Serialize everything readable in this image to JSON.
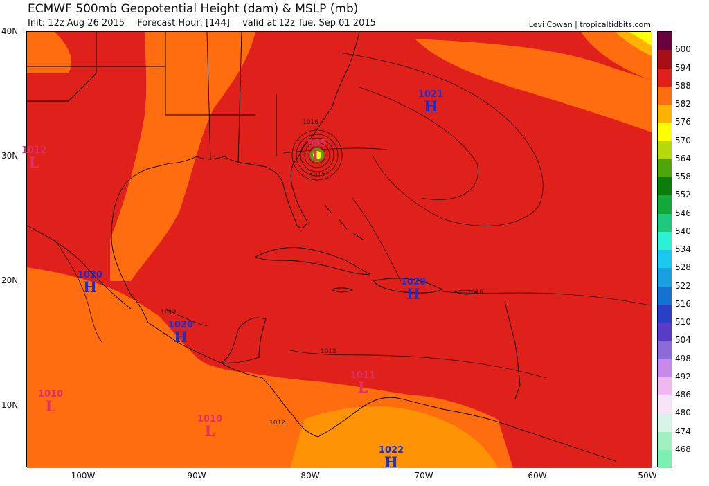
{
  "header": {
    "title": "ECMWF 500mb Geopotential Height (dam) & MSLP (mb)",
    "init": "Init: 12z Aug 26 2015",
    "forecast_hour": "Forecast Hour: [144]",
    "valid": "valid at 12z Tue, Sep 01 2015",
    "credit": "Levi Cowan | tropicaltidbits.com"
  },
  "axes": {
    "lat_labels": [
      "40N",
      "30N",
      "20N",
      "10N"
    ],
    "lon_labels": [
      "100W",
      "90W",
      "80W",
      "70W",
      "60W",
      "50W"
    ]
  },
  "colorbar": {
    "labels": [
      "600",
      "594",
      "588",
      "582",
      "576",
      "570",
      "564",
      "558",
      "552",
      "546",
      "540",
      "534",
      "528",
      "522",
      "516",
      "510",
      "504",
      "498",
      "492",
      "486",
      "480",
      "474",
      "468"
    ],
    "colors": [
      "#6a0040",
      "#a50f15",
      "#e0201a",
      "#ff6d0f",
      "#ffb300",
      "#ffff00",
      "#b5d90a",
      "#4ea60b",
      "#0a7d0a",
      "#13a83c",
      "#1dc87c",
      "#2cf0d8",
      "#1cc8f0",
      "#1aa0e0",
      "#1472d0",
      "#2a3fc8",
      "#5a3ac8",
      "#8c6ad8",
      "#c88ae8",
      "#f0b8f0",
      "#f7e4f7",
      "#d8f4e8",
      "#a0f0c0",
      "#7cf0b0"
    ]
  },
  "pressure_centers": [
    {
      "value": "1021",
      "type": "H"
    },
    {
      "value": "1020",
      "type": "H"
    },
    {
      "value": "1020",
      "type": "H"
    },
    {
      "value": "1020",
      "type": "H"
    },
    {
      "value": "1022",
      "type": "H"
    },
    {
      "value": "1012",
      "type": "L"
    },
    {
      "value": "985",
      "type": "L"
    },
    {
      "value": "1011",
      "type": "L"
    },
    {
      "value": "1010",
      "type": "L"
    },
    {
      "value": "1010",
      "type": "L"
    }
  ],
  "isobar_labels": [
    "1016",
    "1012",
    "1016",
    "1012",
    "1012",
    "1012"
  ]
}
